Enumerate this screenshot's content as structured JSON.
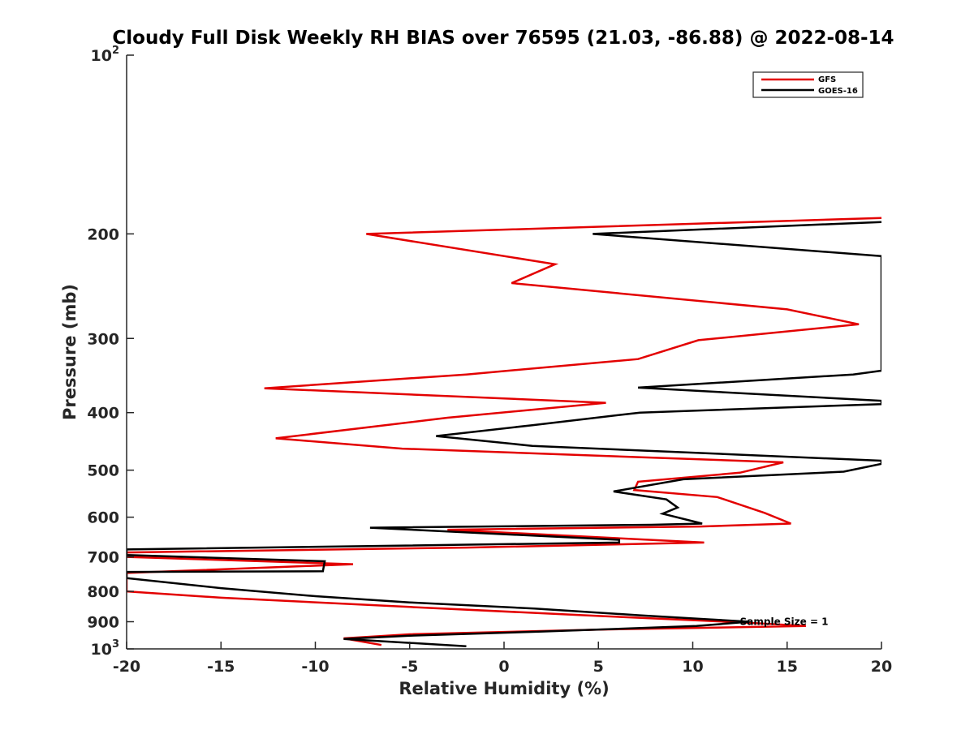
{
  "chart_data": {
    "type": "line",
    "title": "Cloudy Full Disk Weekly RH BIAS over 76595 (21.03, -86.88) @ 2022-08-14",
    "xlabel": "Relative Humidity (%)",
    "ylabel": "Pressure (mb)",
    "xlim": [
      -20,
      20
    ],
    "ylim": [
      100,
      1000
    ],
    "yscale": "log",
    "yreversed": true,
    "grid": false,
    "legend_position": "top-right",
    "x_ticks": [
      -20,
      -15,
      -10,
      -5,
      0,
      5,
      10,
      15,
      20
    ],
    "x_tick_labels": [
      "-20",
      "-15",
      "-10",
      "-5",
      "0",
      "5",
      "10",
      "15",
      "20"
    ],
    "y_ticks": [
      100,
      200,
      300,
      400,
      500,
      600,
      700,
      800,
      900,
      1000
    ],
    "y_tick_labels": {
      "100": {
        "base": "10",
        "exp": "2"
      },
      "200": "200",
      "300": "300",
      "400": "400",
      "500": "500",
      "600": "600",
      "700": "700",
      "800": "800",
      "900": "900",
      "1000": {
        "base": "10",
        "exp": "3"
      }
    },
    "annotation": {
      "text": "Sample Size = 1",
      "x": 12.5,
      "y": 900
    },
    "series": [
      {
        "name": "GFS",
        "color": "#e30000",
        "points": [
          [
            20,
            188
          ],
          [
            -7.3,
            200
          ],
          [
            2.7,
            225
          ],
          [
            0.4,
            242
          ],
          [
            15,
            268
          ],
          [
            18.8,
            284
          ],
          [
            10.3,
            302
          ],
          [
            7.1,
            325
          ],
          [
            -2,
            345
          ],
          [
            -12.7,
            364
          ],
          [
            5.4,
            385
          ],
          [
            -3,
            408
          ],
          [
            -12.1,
            442
          ],
          [
            -5.4,
            460
          ],
          [
            14.8,
            485
          ],
          [
            12.5,
            505
          ],
          [
            7.1,
            523
          ],
          [
            6.9,
            540
          ],
          [
            11.3,
            555
          ],
          [
            13.8,
            590
          ],
          [
            15.2,
            615
          ],
          [
            10.4,
            622
          ],
          [
            -3,
            630
          ],
          [
            10.6,
            662
          ],
          [
            -2,
            675
          ],
          [
            -20,
            688
          ],
          [
            -20,
            700
          ],
          [
            -8,
            720
          ],
          [
            -20,
            745
          ],
          [
            -20,
            800
          ],
          [
            -15,
            820
          ],
          [
            -5,
            850
          ],
          [
            5,
            880
          ],
          [
            12.5,
            902
          ],
          [
            16,
            915
          ],
          [
            5,
            928
          ],
          [
            -5,
            945
          ],
          [
            -8.5,
            960
          ],
          [
            -6.5,
            985
          ]
        ]
      },
      {
        "name": "GOES-16",
        "color": "#000000",
        "points": [
          [
            20,
            191
          ],
          [
            4.7,
            200
          ],
          [
            20,
            218
          ],
          [
            20,
            340
          ],
          [
            18.5,
            345
          ],
          [
            7.1,
            363
          ],
          [
            20,
            382
          ],
          [
            20,
            387
          ],
          [
            7.2,
            400
          ],
          [
            1.5,
            420
          ],
          [
            -3.6,
            438
          ],
          [
            1.5,
            455
          ],
          [
            20,
            482
          ],
          [
            20,
            488
          ],
          [
            18,
            503
          ],
          [
            9.5,
            518
          ],
          [
            5.8,
            543
          ],
          [
            8.6,
            560
          ],
          [
            9.2,
            578
          ],
          [
            8.4,
            592
          ],
          [
            10.5,
            615
          ],
          [
            7.8,
            618
          ],
          [
            -7.1,
            625
          ],
          [
            6.1,
            655
          ],
          [
            6.1,
            662
          ],
          [
            -20,
            680
          ],
          [
            -20,
            695
          ],
          [
            -9.5,
            712
          ],
          [
            -9.6,
            740
          ],
          [
            -20,
            742
          ],
          [
            -20,
            760
          ],
          [
            -15,
            790
          ],
          [
            -10,
            815
          ],
          [
            -5,
            835
          ],
          [
            1.6,
            855
          ],
          [
            7.2,
            878
          ],
          [
            13,
            900
          ],
          [
            10.2,
            915
          ],
          [
            2,
            935
          ],
          [
            -5,
            950
          ],
          [
            -8.5,
            962
          ],
          [
            -2,
            990
          ]
        ]
      }
    ]
  }
}
